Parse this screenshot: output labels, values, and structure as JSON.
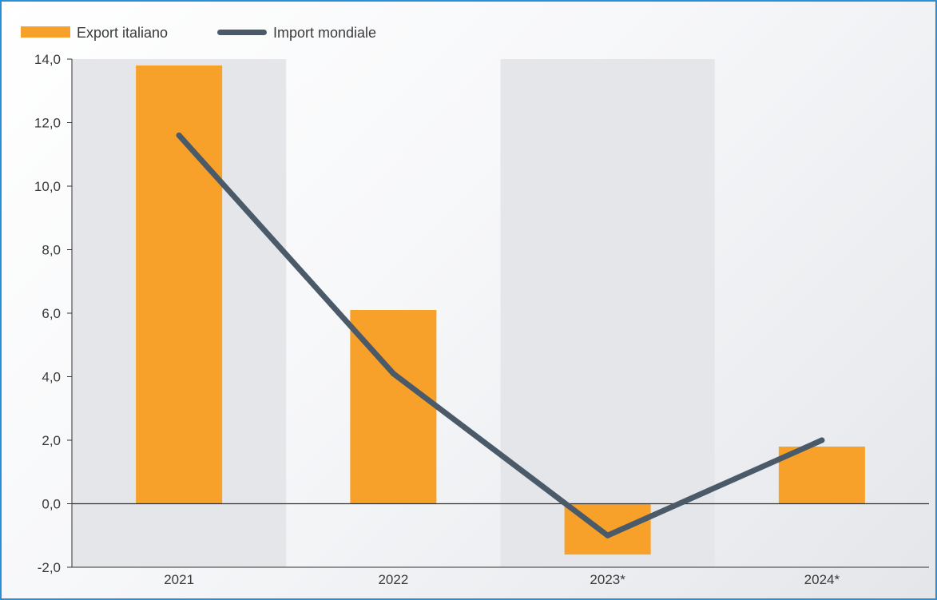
{
  "chart_data": {
    "type": "bar",
    "categories": [
      "2021",
      "2022",
      "2023*",
      "2024*"
    ],
    "series": [
      {
        "name": "Export italiano",
        "kind": "bar",
        "color": "#f7a12a",
        "values": [
          13.8,
          6.1,
          -1.6,
          1.8
        ]
      },
      {
        "name": "Import mondiale",
        "kind": "line",
        "color": "#4b5a68",
        "values": [
          11.6,
          4.1,
          -1.0,
          2.0
        ]
      }
    ],
    "ylim": [
      -2.0,
      14.0
    ],
    "yticks": [
      "-2,0",
      "0,0",
      "2,0",
      "4,0",
      "6,0",
      "8,0",
      "10,0",
      "12,0",
      "14,0"
    ],
    "ytick_values": [
      -2,
      0,
      2,
      4,
      6,
      8,
      10,
      12,
      14
    ],
    "legend_position": "top-left",
    "band_color": "#e4e6ea",
    "axis_color": "#333333",
    "frame_color": "#2a8fd6"
  }
}
